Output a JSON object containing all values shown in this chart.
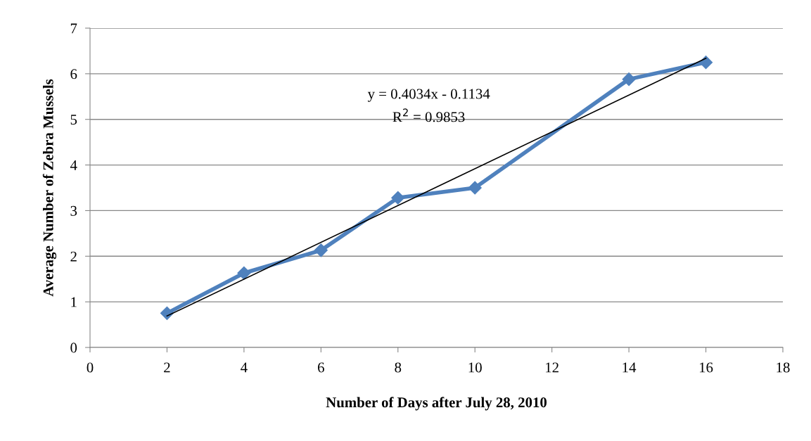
{
  "chart_data": {
    "type": "line",
    "xlabel": "Number of Days after July 28, 2010",
    "ylabel": "Average Number of Zebra Mussels",
    "x": [
      2,
      4,
      6,
      8,
      10,
      14,
      16
    ],
    "series": [
      {
        "color": "#4f81bd",
        "values": [
          0.75,
          1.63,
          2.13,
          3.28,
          3.5,
          5.88,
          6.25
        ],
        "marker": "diamond",
        "line_style": "solid"
      },
      {
        "type": "line",
        "x": [
          2,
          16
        ],
        "color": "#000000",
        "values": [
          0.69,
          6.34
        ],
        "marker": "none",
        "line_style": "solid"
      }
    ],
    "annotations": [
      "y = 0.4034x - 0.1134",
      "R$^{2}$ = 0.9853"
    ],
    "xlim": [
      0,
      18
    ],
    "xticks": [
      0,
      2,
      4,
      6,
      8,
      10,
      12,
      14,
      16,
      18
    ],
    "ylim": [
      0,
      7
    ],
    "yticks": [
      0,
      1,
      2,
      3,
      4,
      5,
      6,
      7
    ],
    "grid": "y",
    "legend": false
  }
}
